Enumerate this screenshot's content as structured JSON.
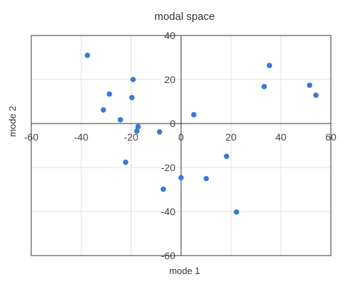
{
  "chart_data": {
    "type": "scatter",
    "title": "modal space",
    "xlabel": "mode 1",
    "ylabel": "mode 2",
    "xlim": [
      -60,
      60
    ],
    "ylim": [
      -60,
      40
    ],
    "xticks": [
      "-60",
      "-40",
      "-20",
      "0",
      "20",
      "40",
      "60"
    ],
    "yticks": [
      "40",
      "20",
      "0",
      "-20",
      "-40",
      "-60"
    ],
    "grid": true,
    "legend": "none",
    "point_color": "#3c78d8",
    "points": [
      {
        "x": -37.5,
        "y": 31
      },
      {
        "x": -28.7,
        "y": 13.4
      },
      {
        "x": -31.1,
        "y": 6.2
      },
      {
        "x": -24.3,
        "y": 1.7
      },
      {
        "x": -19.2,
        "y": 20
      },
      {
        "x": -19.7,
        "y": 11.8
      },
      {
        "x": -17.2,
        "y": -1.4
      },
      {
        "x": -17.7,
        "y": -3.4
      },
      {
        "x": -8.6,
        "y": -3.8
      },
      {
        "x": -22.2,
        "y": -17.6
      },
      {
        "x": 5.1,
        "y": 4
      },
      {
        "x": -7.1,
        "y": -29.8
      },
      {
        "x": 0,
        "y": -24.6
      },
      {
        "x": 10.1,
        "y": -25
      },
      {
        "x": 18.2,
        "y": -14.9
      },
      {
        "x": 22.2,
        "y": -40.2
      },
      {
        "x": 33.3,
        "y": 16.8
      },
      {
        "x": 35.4,
        "y": 26.4
      },
      {
        "x": 51.5,
        "y": 17.4
      },
      {
        "x": 54,
        "y": 12.9
      }
    ]
  }
}
